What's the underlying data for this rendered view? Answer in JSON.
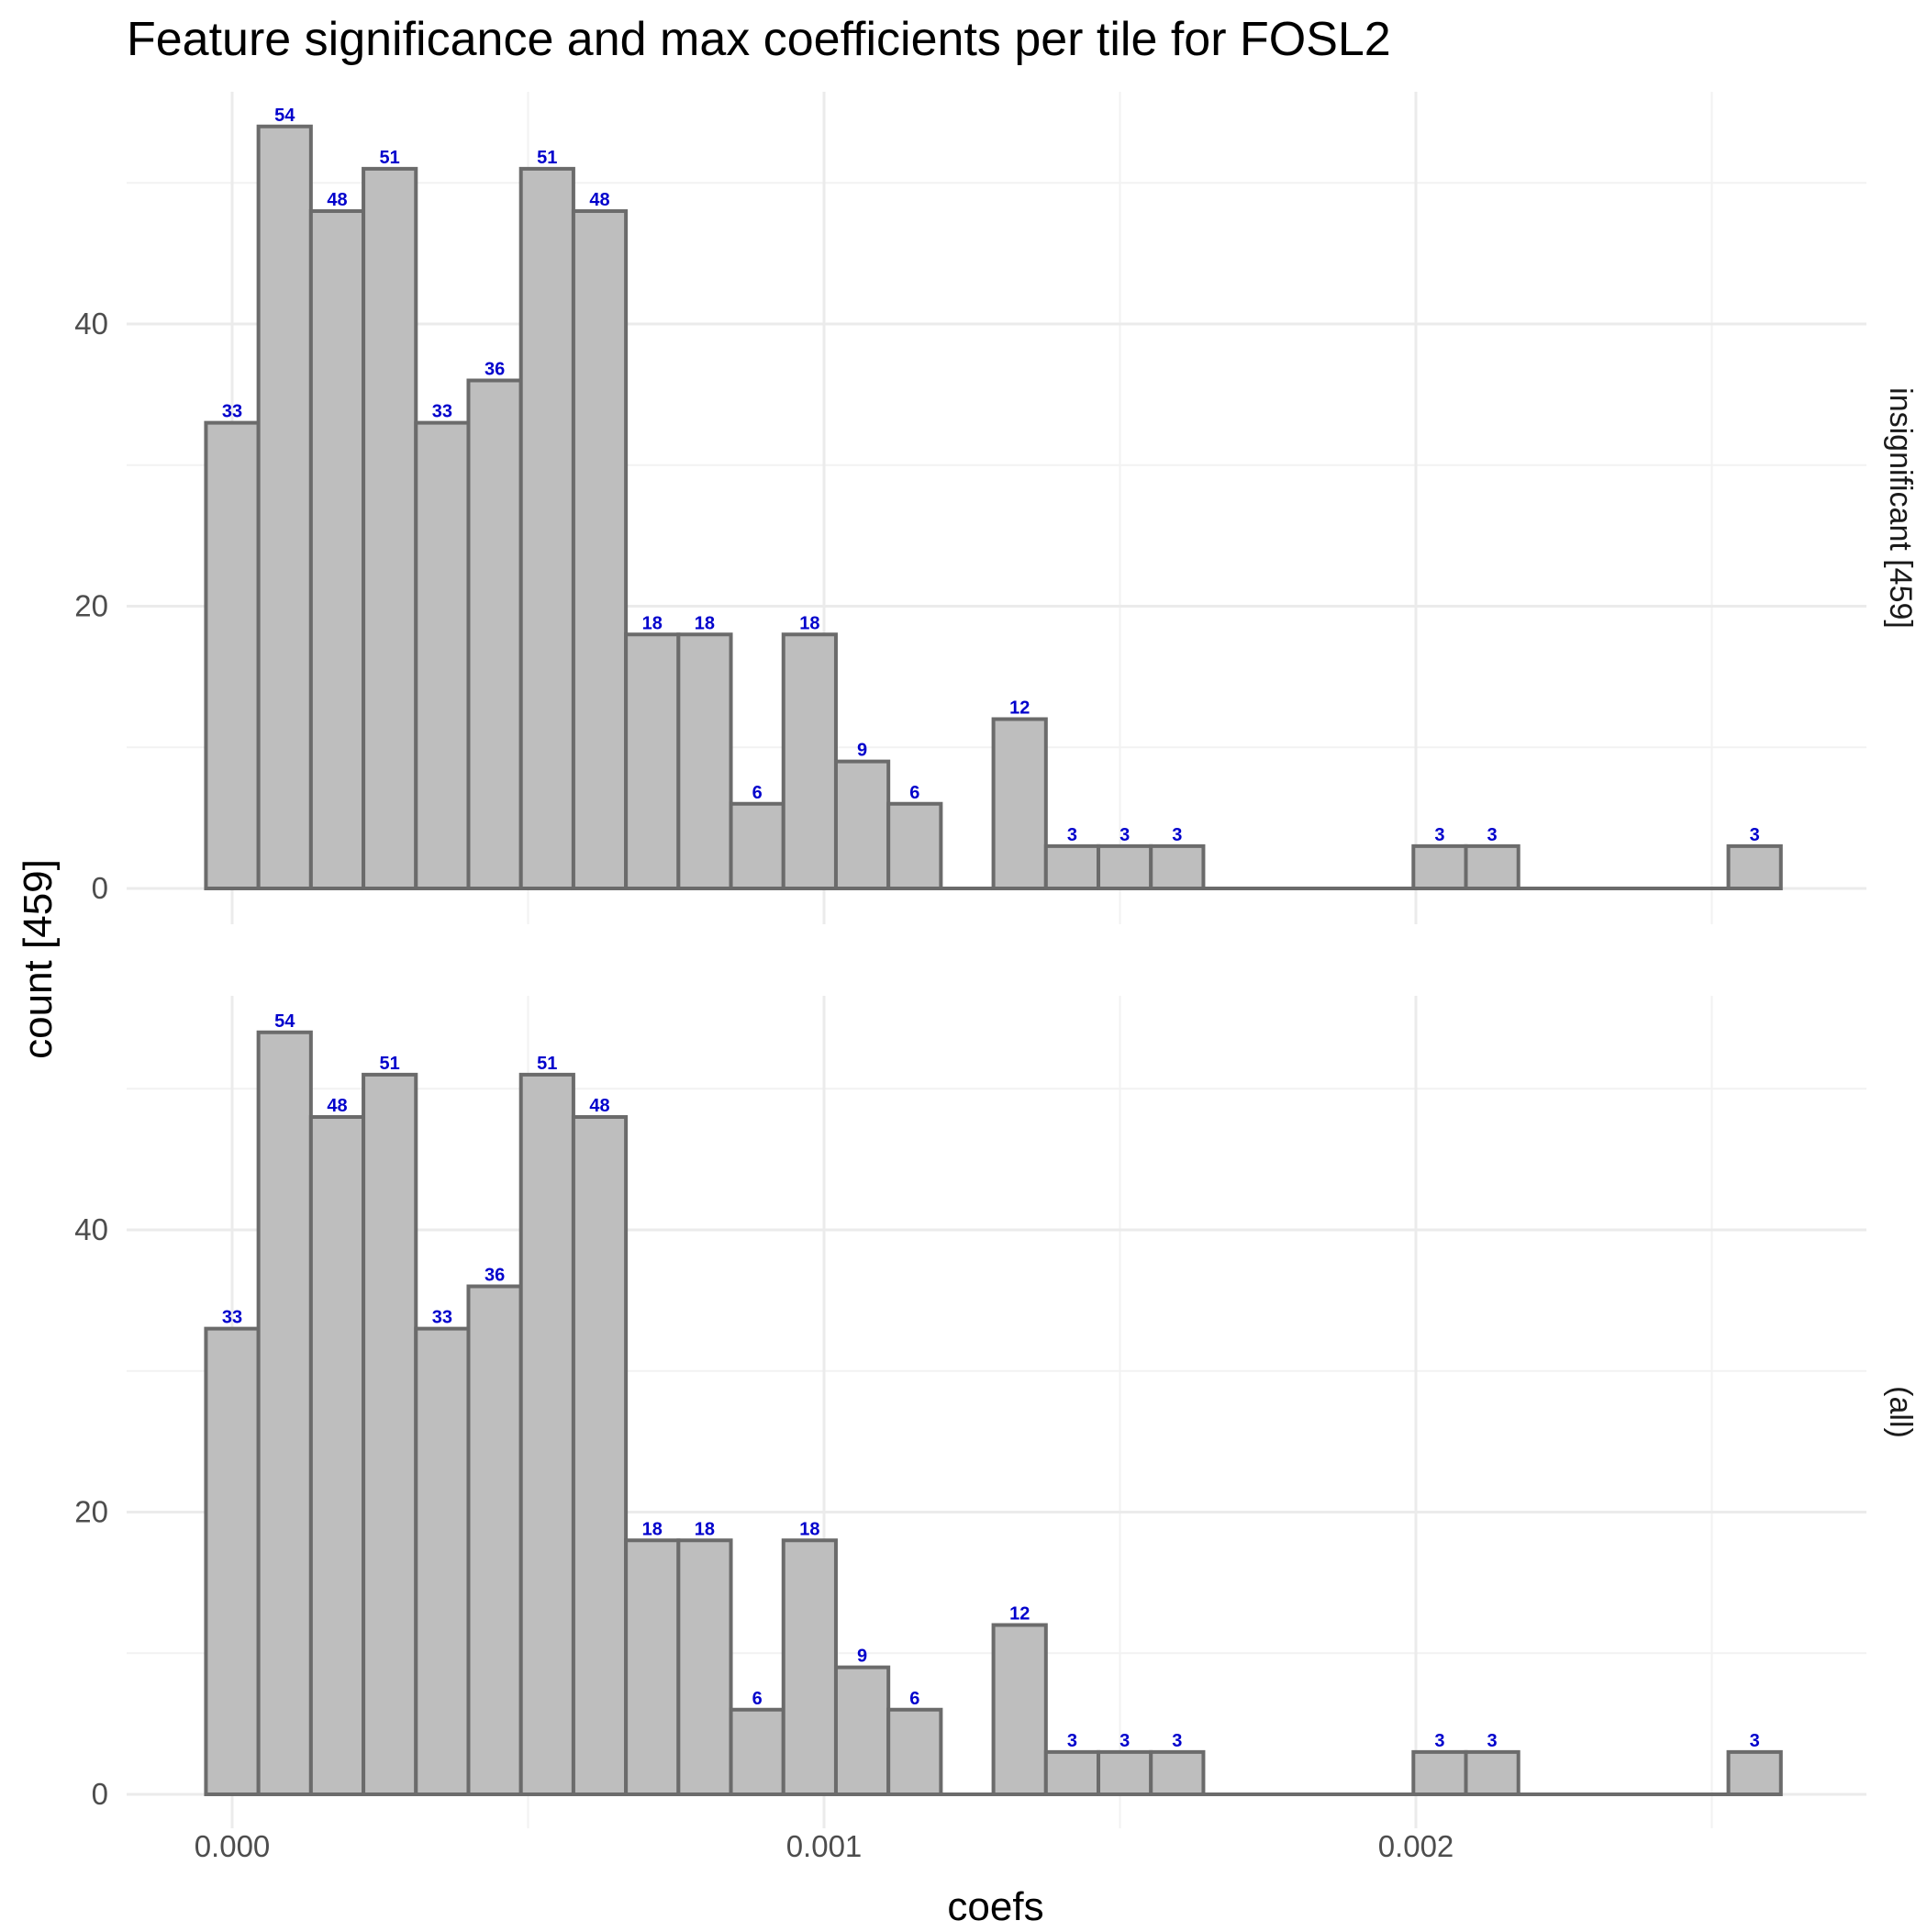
{
  "chart_data": {
    "type": "bar",
    "title": "Feature significance and max coefficients per tile for FOSL2",
    "xlabel": "coefs",
    "ylabel": "count [459]",
    "xlim": [
      -0.00035,
      0.00275
    ],
    "ylim": [
      0,
      56
    ],
    "x_ticks": [
      {
        "value": 0.0,
        "label": "0.000"
      },
      {
        "value": 0.001,
        "label": "0.001"
      },
      {
        "value": 0.002,
        "label": "0.002"
      }
    ],
    "y_ticks": [
      {
        "value": 0,
        "label": "0"
      },
      {
        "value": 20,
        "label": "20"
      },
      {
        "value": 40,
        "label": "40"
      }
    ],
    "bin_width": 8.87e-05,
    "bin_start": -4.43e-05,
    "grid": true,
    "panels": [
      {
        "strip": "insignificant [459]",
        "counts": [
          33,
          54,
          48,
          51,
          33,
          36,
          51,
          48,
          18,
          18,
          6,
          18,
          9,
          6,
          0,
          12,
          3,
          3,
          3,
          0,
          0,
          0,
          0,
          3,
          3,
          0,
          0,
          0,
          0,
          3
        ]
      },
      {
        "strip": "(all)",
        "counts": [
          33,
          54,
          48,
          51,
          33,
          36,
          51,
          48,
          18,
          18,
          6,
          18,
          9,
          6,
          0,
          12,
          3,
          3,
          3,
          0,
          0,
          0,
          0,
          3,
          3,
          0,
          0,
          0,
          0,
          3
        ]
      }
    ]
  },
  "colors": {
    "bar_fill": "#bebebe",
    "bar_stroke": "#6b6b6b",
    "bar_label": "#0000cc",
    "grid": "#ebebeb"
  }
}
